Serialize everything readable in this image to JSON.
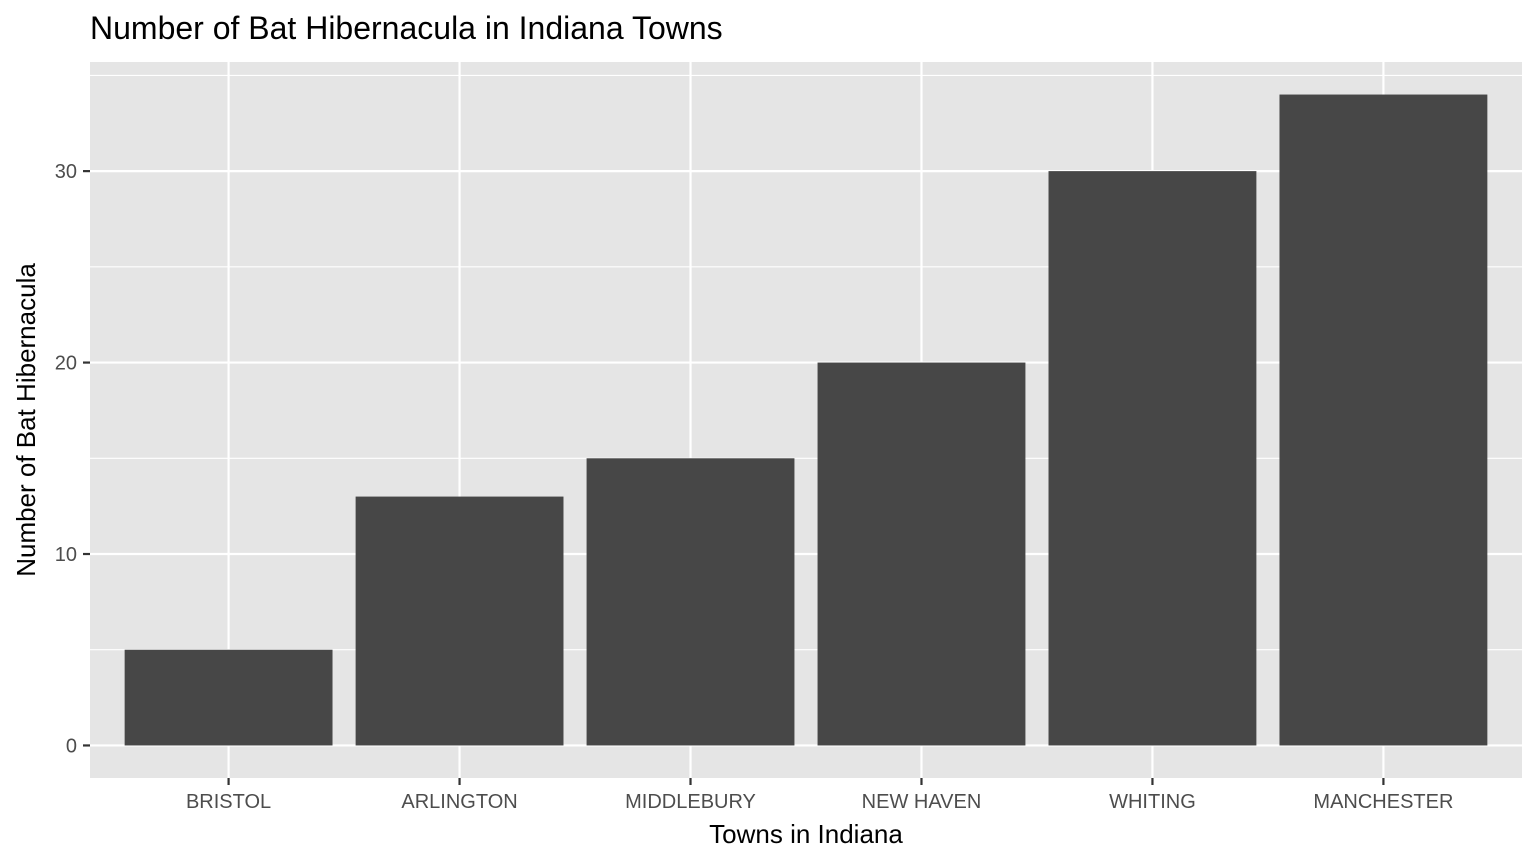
{
  "chart_data": {
    "type": "bar",
    "title": "Number of Bat Hibernacula in Indiana Towns",
    "xlabel": "Towns in Indiana",
    "ylabel": "Number of Bat Hibernacula",
    "categories": [
      "BRISTOL",
      "ARLINGTON",
      "MIDDLEBURY",
      "NEW HAVEN",
      "WHITING",
      "MANCHESTER"
    ],
    "values": [
      5,
      13,
      15,
      20,
      30,
      34
    ],
    "ylim": [
      -1.7,
      35.7
    ],
    "yticks": [
      0,
      10,
      20,
      30
    ],
    "ytick_labels": [
      "0",
      "10",
      "20",
      "30"
    ],
    "grid": true,
    "colors": {
      "bar": "#474747",
      "panel": "#e5e5e5",
      "grid": "#ffffff",
      "tick": "#333333"
    }
  }
}
